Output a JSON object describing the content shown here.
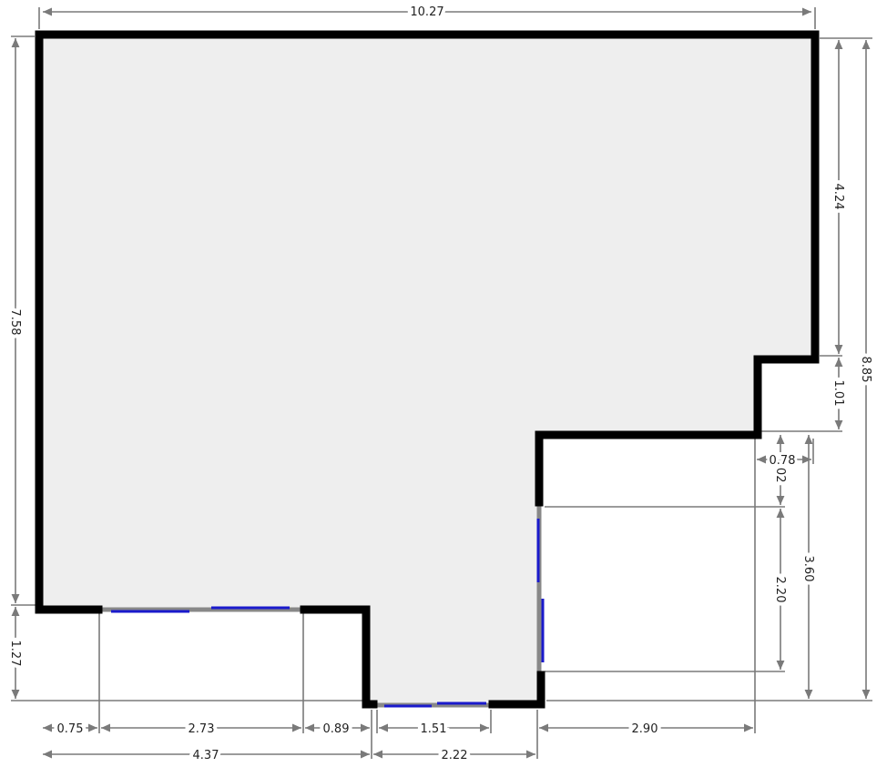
{
  "colors": {
    "room_fill": "#eeeeee",
    "wall": "#000000",
    "window": "#1a1acc",
    "window_frame": "#888888",
    "dimension_line": "#7a7a7a",
    "text": "#222222"
  },
  "dimensions": {
    "overall_width": "10.27",
    "overall_height": "8.85",
    "left_wall": "7.58",
    "right_upper": "4.24",
    "step_height": "1.01",
    "step_width": "0.78",
    "small_offset": "1.02",
    "east_window": "2.20",
    "right_lower": "3.60",
    "bottom_projection": "1.27",
    "bottom_seg_1": "0.75",
    "bottom_window": "2.73",
    "bottom_seg_2": "0.89",
    "bay_window": "1.51",
    "bottom_right": "2.90",
    "bottom_total_left": "4.37",
    "bay_width": "2.22"
  }
}
